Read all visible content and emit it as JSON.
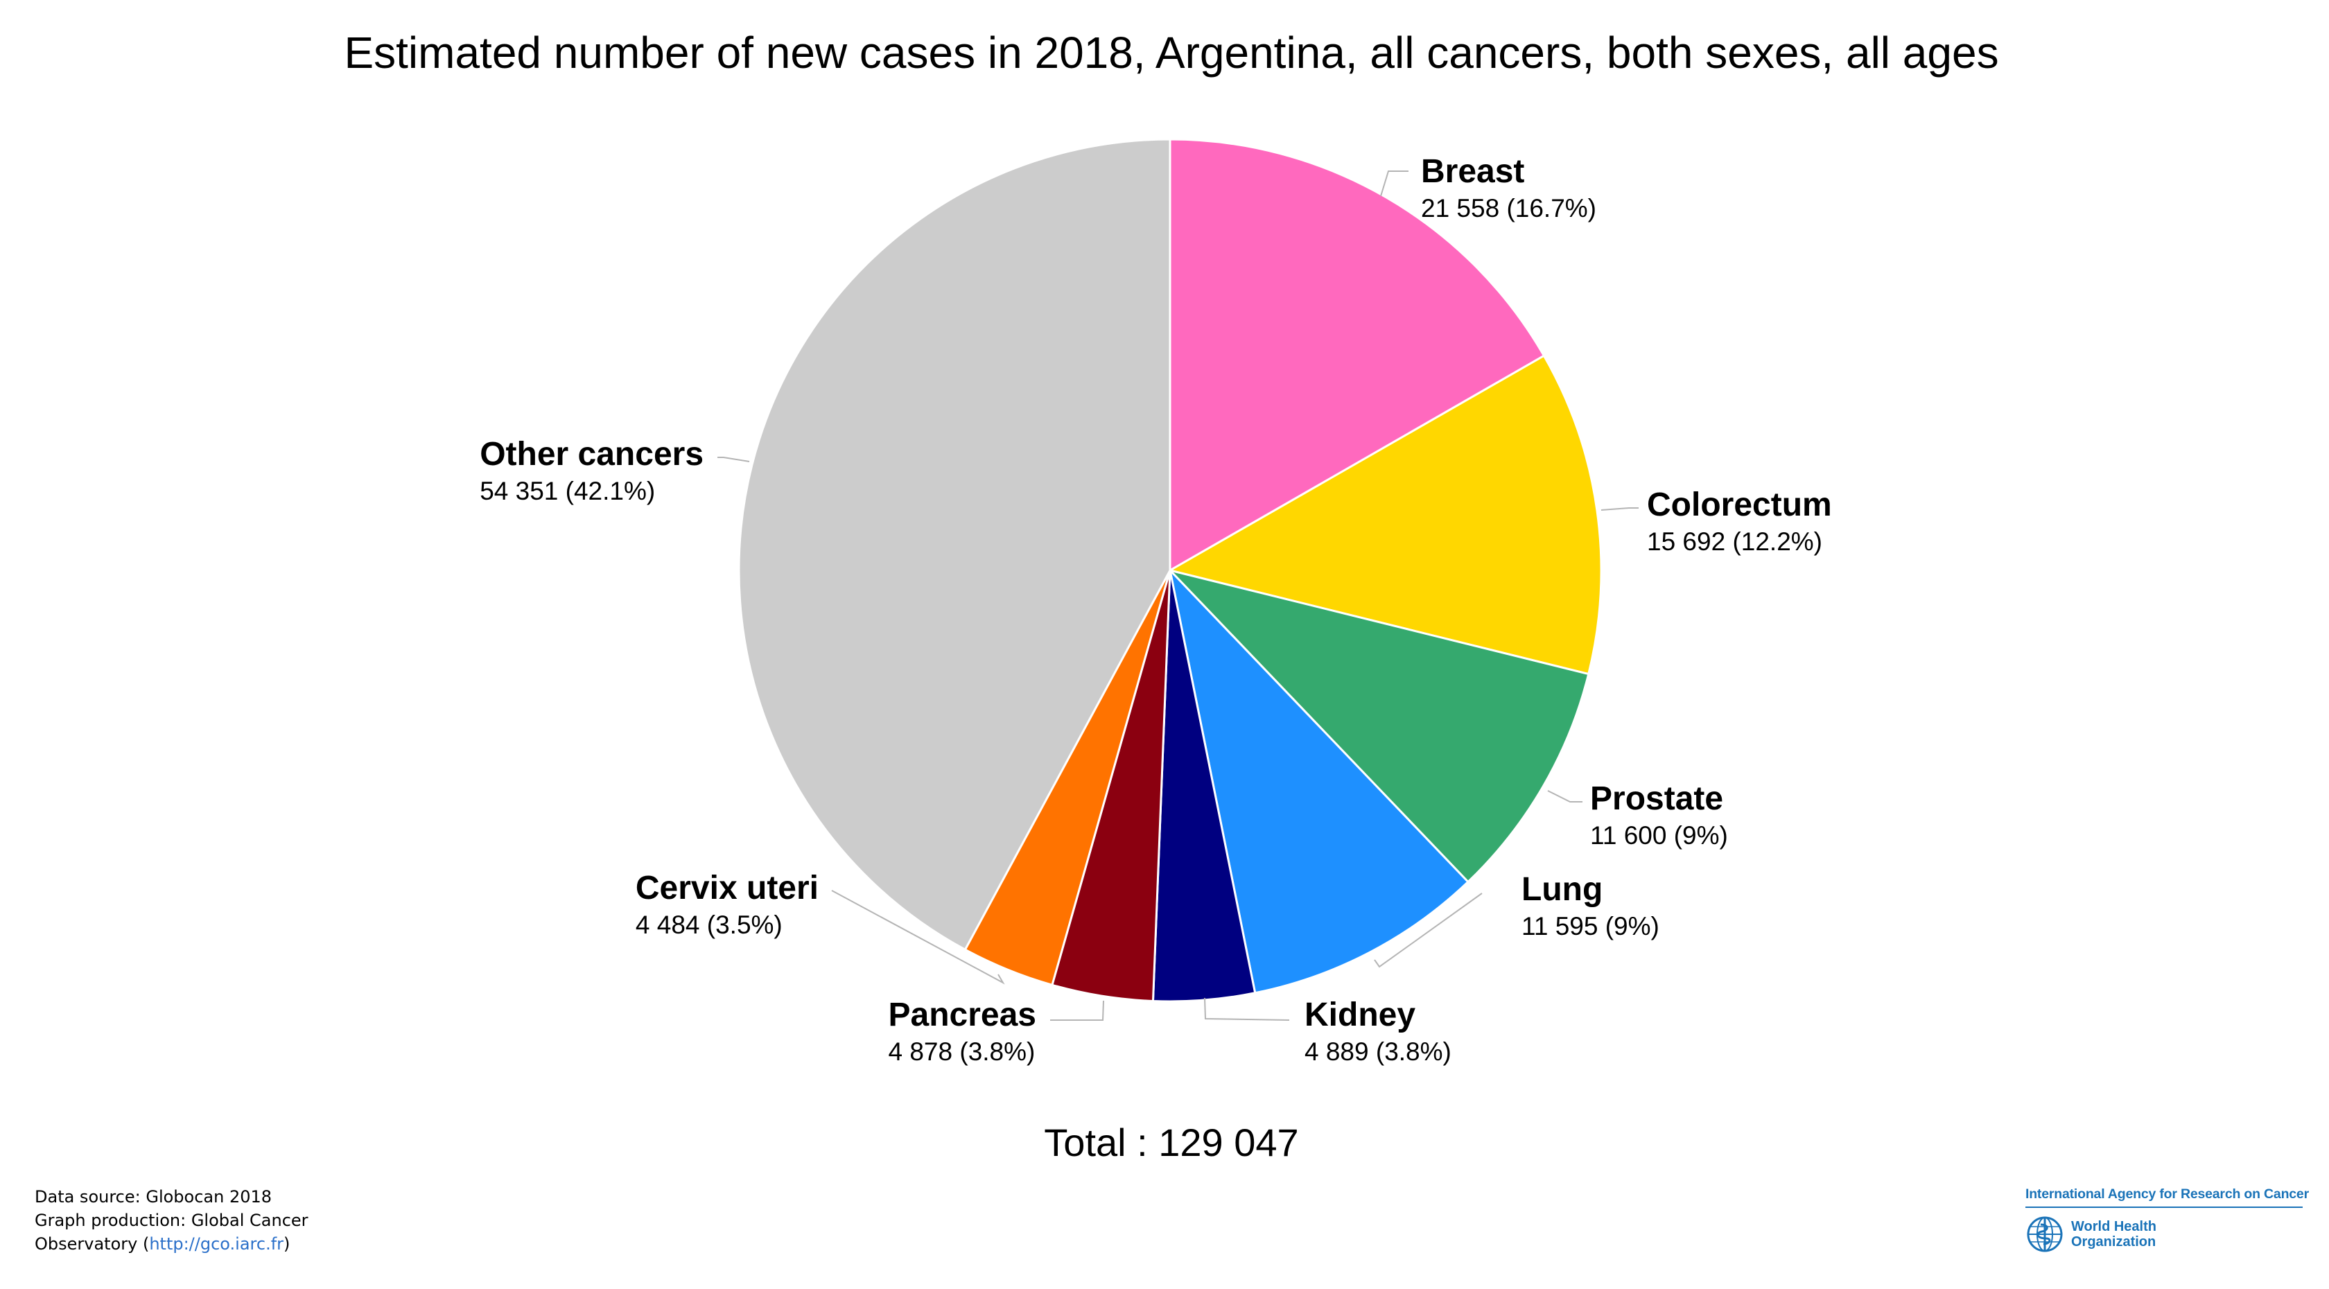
{
  "title": "Estimated number of new cases in 2018, Argentina, all cancers, both sexes, all ages",
  "total_label": "Total : 129 047",
  "chart_data": {
    "type": "pie",
    "title": "Estimated number of new cases in 2018, Argentina, all cancers, both sexes, all ages",
    "total": 129047,
    "start_angle_deg": 0,
    "direction": "clockwise",
    "slices": [
      {
        "name": "Breast",
        "value": 21558,
        "value_label": "21 558 (16.7%)",
        "percent": 16.7,
        "color": "#ff69be"
      },
      {
        "name": "Colorectum",
        "value": 15692,
        "value_label": "15 692 (12.2%)",
        "percent": 12.2,
        "color": "#ffd700"
      },
      {
        "name": "Prostate",
        "value": 11600,
        "value_label": "11 600 (9%)",
        "percent": 9.0,
        "color": "#35a96e"
      },
      {
        "name": "Lung",
        "value": 11595,
        "value_label": "11 595 (9%)",
        "percent": 9.0,
        "color": "#1e90ff"
      },
      {
        "name": "Kidney",
        "value": 4889,
        "value_label": "4 889 (3.8%)",
        "percent": 3.8,
        "color": "#000080"
      },
      {
        "name": "Pancreas",
        "value": 4878,
        "value_label": "4 878 (3.8%)",
        "percent": 3.8,
        "color": "#8b0010"
      },
      {
        "name": "Cervix uteri",
        "value": 4484,
        "value_label": "4 484 (3.5%)",
        "percent": 3.5,
        "color": "#ff7300"
      },
      {
        "name": "Other cancers",
        "value": 54351,
        "value_label": "54 351 (42.1%)",
        "percent": 42.1,
        "color": "#cccccc"
      }
    ]
  },
  "credits": {
    "line1": "Data source: Globocan 2018",
    "line2": "Graph production: Global Cancer",
    "line3_prefix": "Observatory (",
    "line3_link": "http://gco.iarc.fr",
    "line3_suffix": ")"
  },
  "logos": {
    "iarc_name": "International Agency for Research on Cancer",
    "who_line1": "World Health",
    "who_line2": "Organization",
    "brand_color": "#1a73b8",
    "emblem_icon": "who-emblem-icon"
  }
}
